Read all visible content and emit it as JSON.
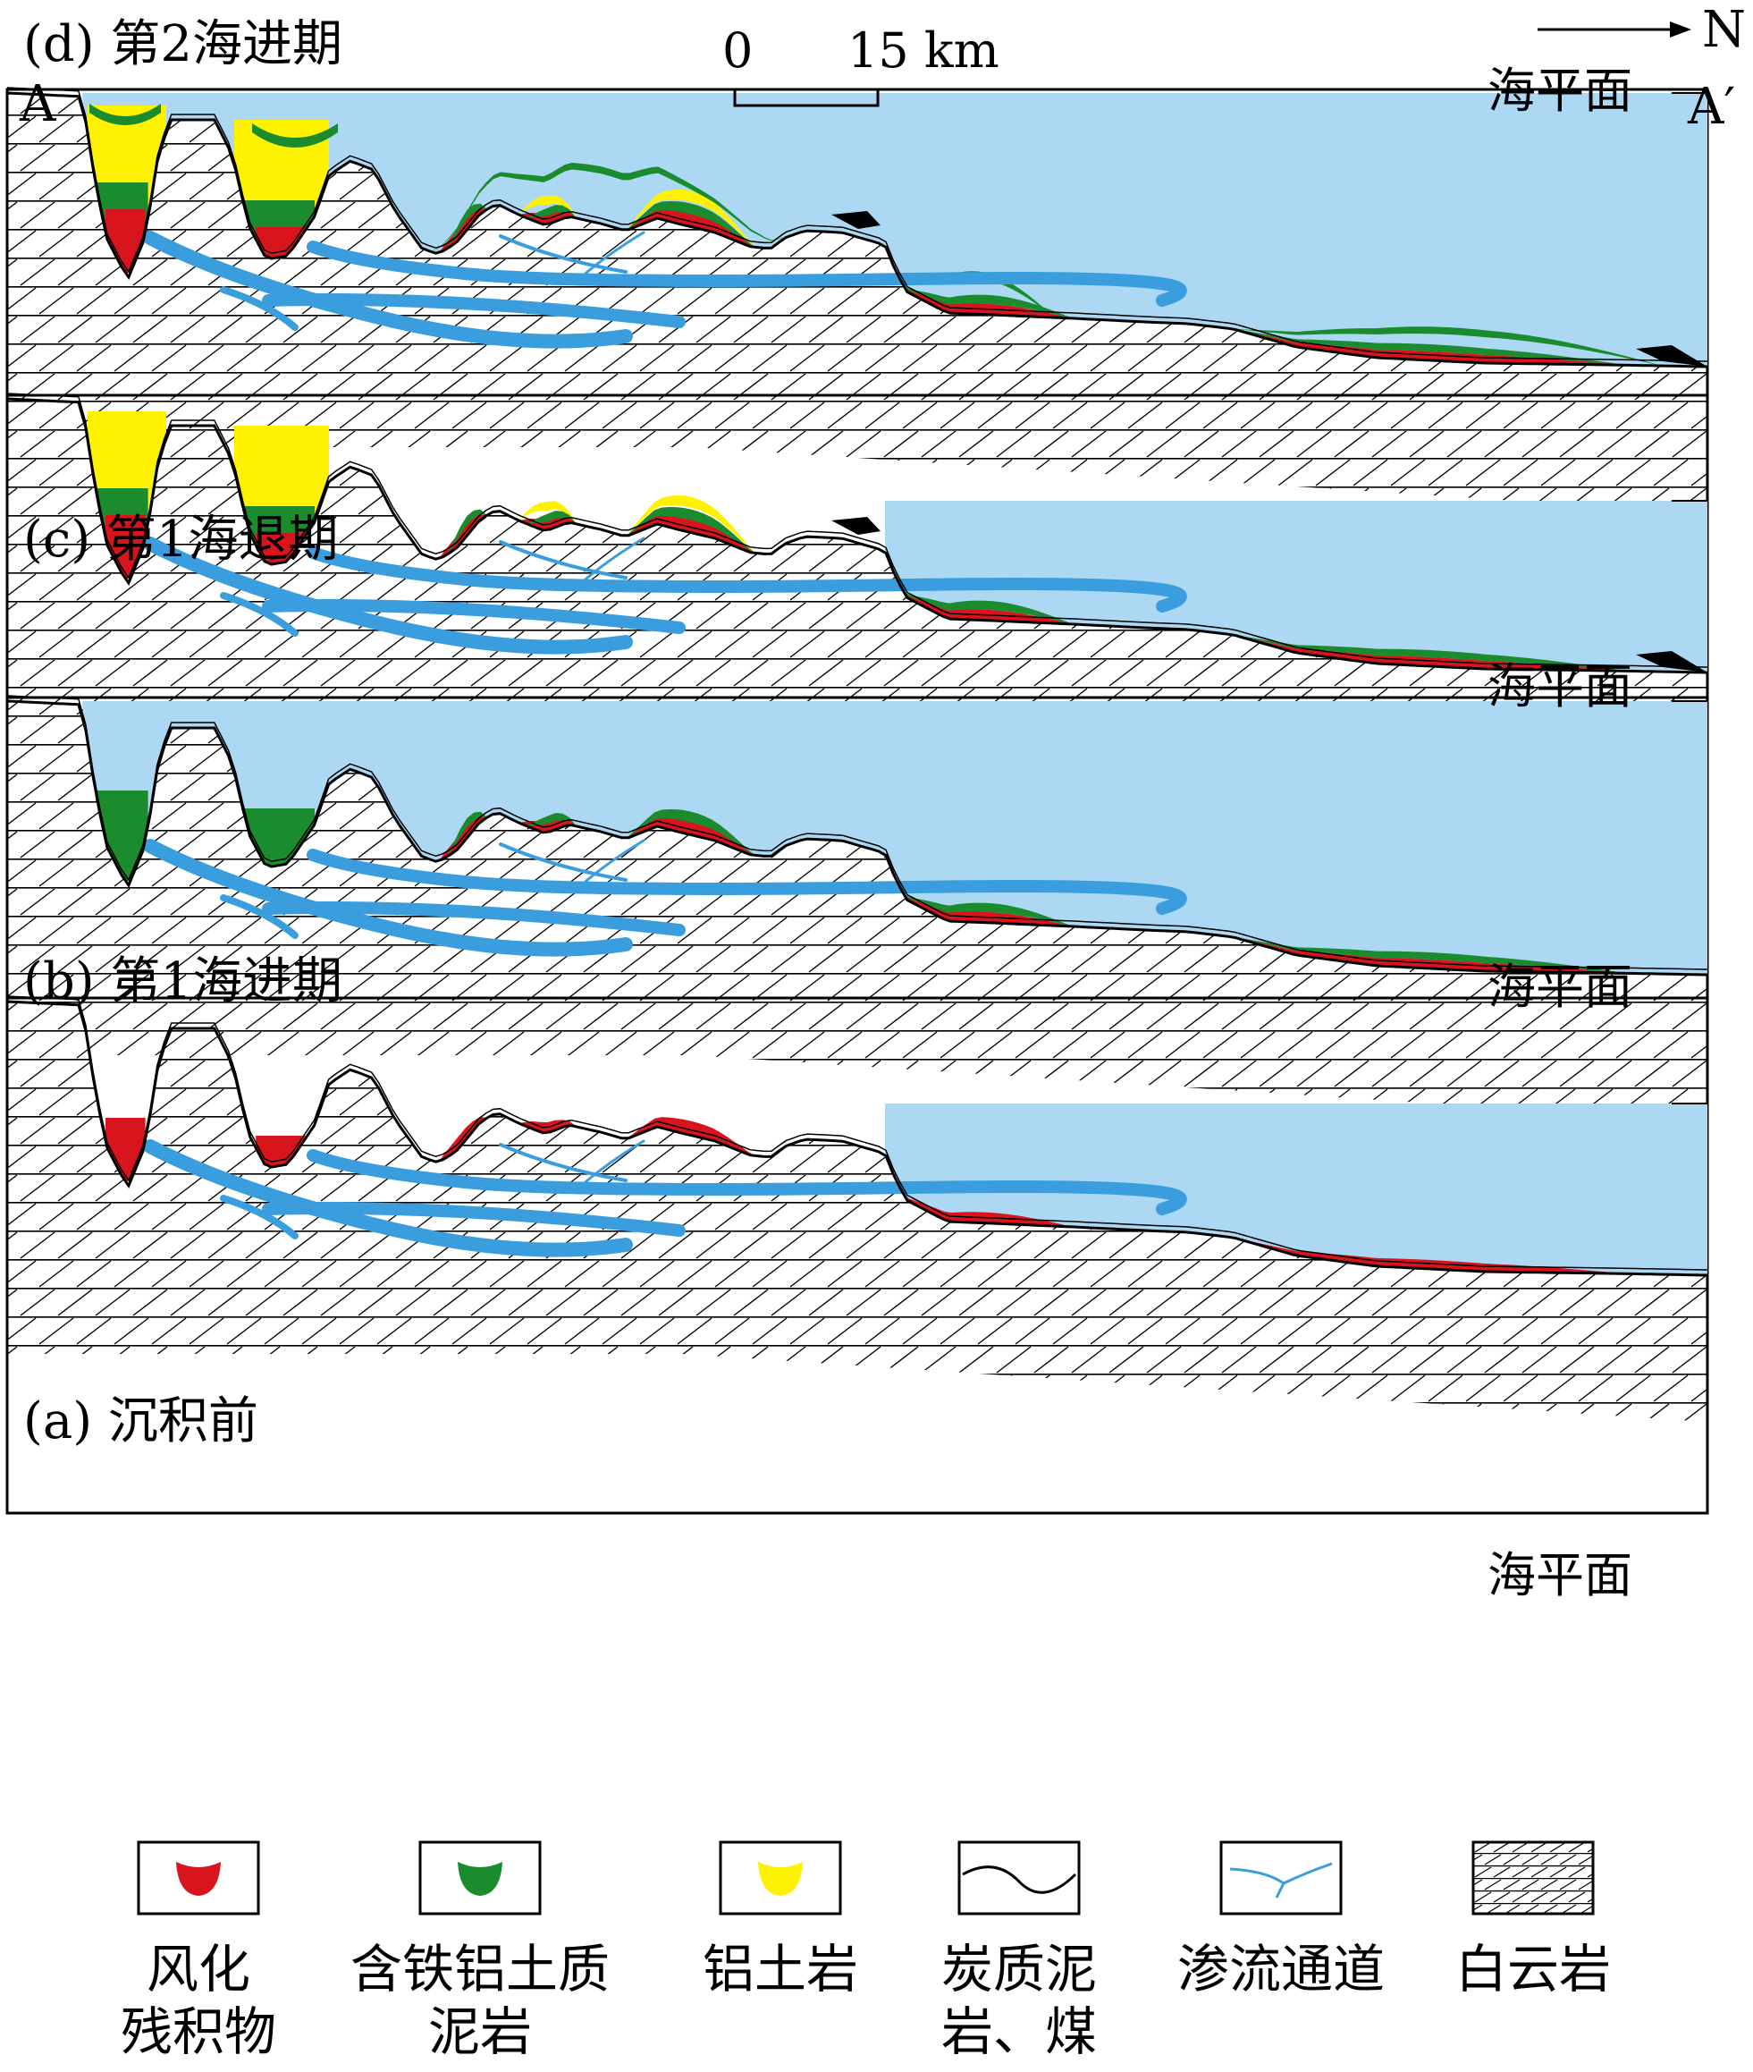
{
  "panels": [
    {
      "id": "d",
      "title": "(d) 第2海进期",
      "sea_label": "海平面"
    },
    {
      "id": "c",
      "title": "(c) 第1海退期",
      "sea_label": "海平面"
    },
    {
      "id": "b",
      "title": "(b) 第1海进期",
      "sea_label": "海平面"
    },
    {
      "id": "a",
      "title": "(a) 沉积前",
      "sea_label": "海平面"
    }
  ],
  "profile": {
    "start_label": "A",
    "end_label": "A′",
    "north_label": "N"
  },
  "scale": {
    "zero": "0",
    "label": "15 km"
  },
  "legend": [
    {
      "key": "residual",
      "line1": "风化",
      "line2": "残积物",
      "color": "#d8141c"
    },
    {
      "key": "ferro-mudstone",
      "line1": "含铁铝土质",
      "line2": "泥岩",
      "color": "#1a8c2e"
    },
    {
      "key": "bauxite",
      "line1": "铝土岩",
      "line2": "",
      "color": "#fff200"
    },
    {
      "key": "carbonaceous",
      "line1": "炭质泥",
      "line2": "岩、煤",
      "color": "#000000"
    },
    {
      "key": "seepage",
      "line1": "渗流通道",
      "line2": "",
      "color": "#3a9ede"
    },
    {
      "key": "dolomite",
      "line1": "白云岩",
      "line2": "",
      "color": "#ffffff"
    }
  ],
  "colors": {
    "sea": "#acd8f4",
    "channel": "#3a9ede",
    "dolomite_line": "#000000"
  }
}
